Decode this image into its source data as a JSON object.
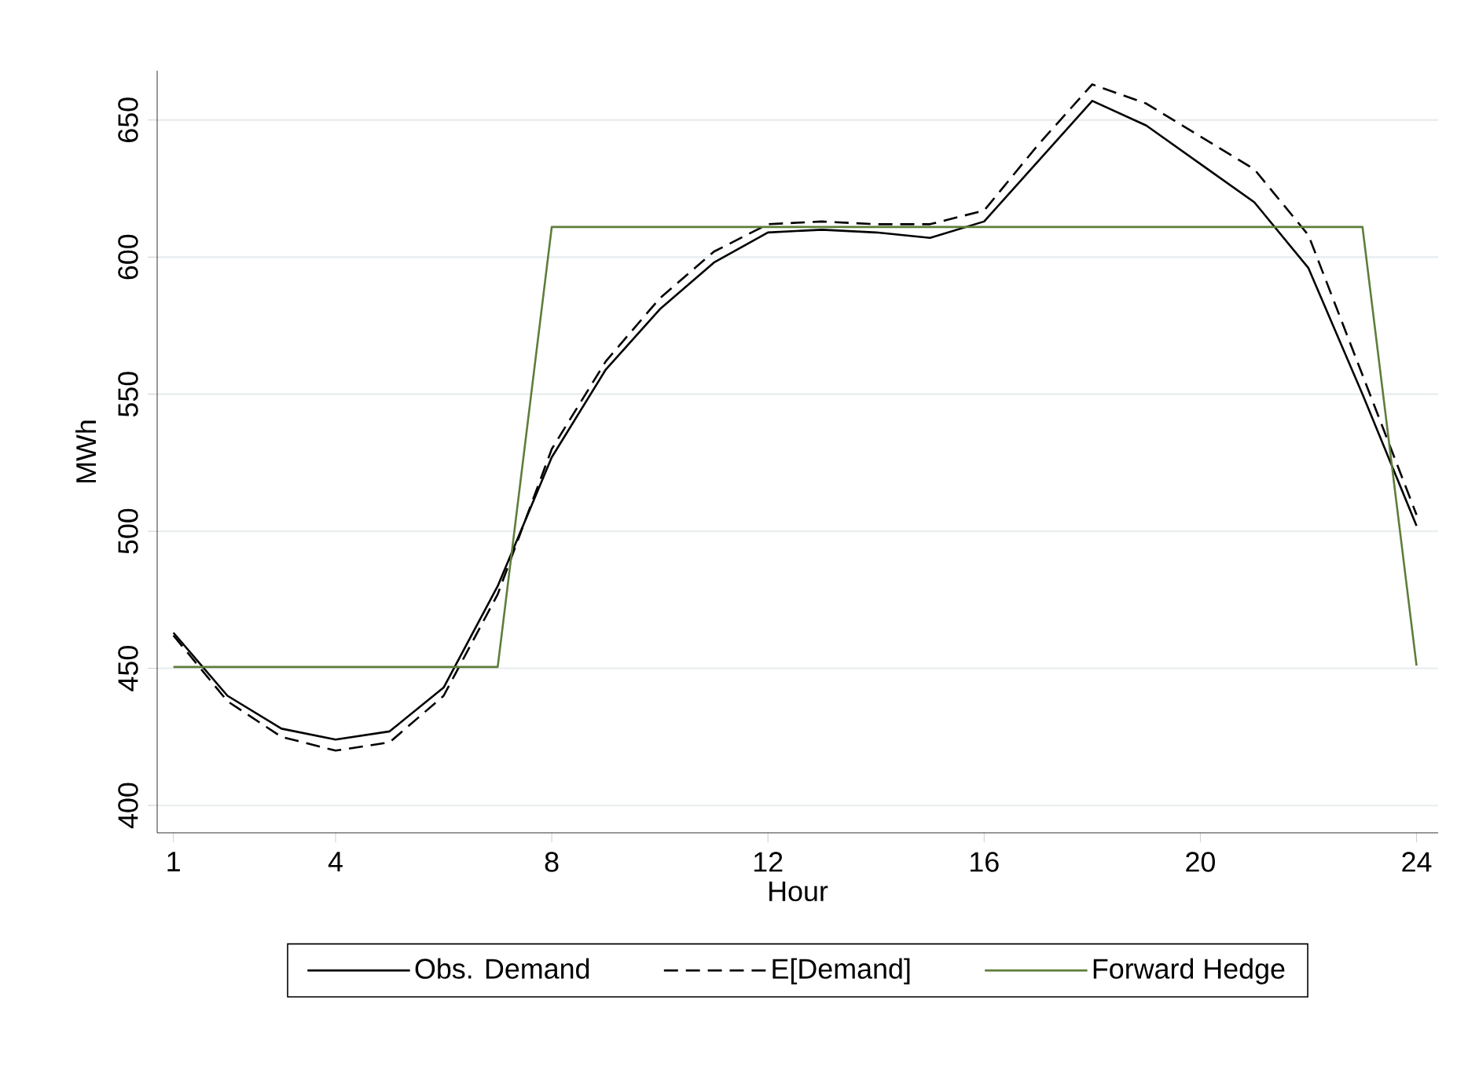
{
  "chart_data": {
    "type": "line",
    "xlabel": "Hour",
    "ylabel": "MWh",
    "x": [
      1,
      2,
      3,
      4,
      5,
      6,
      7,
      8,
      9,
      10,
      11,
      12,
      13,
      14,
      15,
      16,
      17,
      18,
      19,
      20,
      21,
      22,
      23,
      24
    ],
    "series": [
      {
        "name": "Obs. Demand",
        "color": "#000000",
        "line_style": "solid",
        "values": [
          463,
          440,
          428,
          424,
          427,
          443,
          480,
          527,
          559,
          581,
          598,
          609,
          610,
          609,
          607,
          613,
          635,
          657,
          648,
          634,
          620,
          596,
          550,
          502
        ]
      },
      {
        "name": "E[Demand]",
        "color": "#000000",
        "line_style": "dashed",
        "values": [
          462,
          438,
          425,
          420,
          423,
          440,
          477,
          530,
          562,
          585,
          602,
          612,
          613,
          612,
          612,
          617,
          641,
          663,
          656,
          644,
          632,
          608,
          557,
          506
        ]
      },
      {
        "name": "Forward Hedge",
        "color": "#5e7d3a",
        "line_style": "solid",
        "values": [
          450.5,
          450.5,
          450.5,
          450.5,
          450.5,
          450.5,
          450.5,
          611,
          611,
          611,
          611,
          611,
          611,
          611,
          611,
          611,
          611,
          611,
          611,
          611,
          611,
          611,
          611,
          451
        ]
      }
    ],
    "xlim": [
      0.7,
      24.4
    ],
    "ylim": [
      390,
      668
    ],
    "xticks": [
      1,
      4,
      8,
      12,
      16,
      20,
      24
    ],
    "yticks": [
      400,
      450,
      500,
      550,
      600,
      650
    ],
    "grid": "y",
    "legend": "bottom",
    "marker": "none"
  }
}
